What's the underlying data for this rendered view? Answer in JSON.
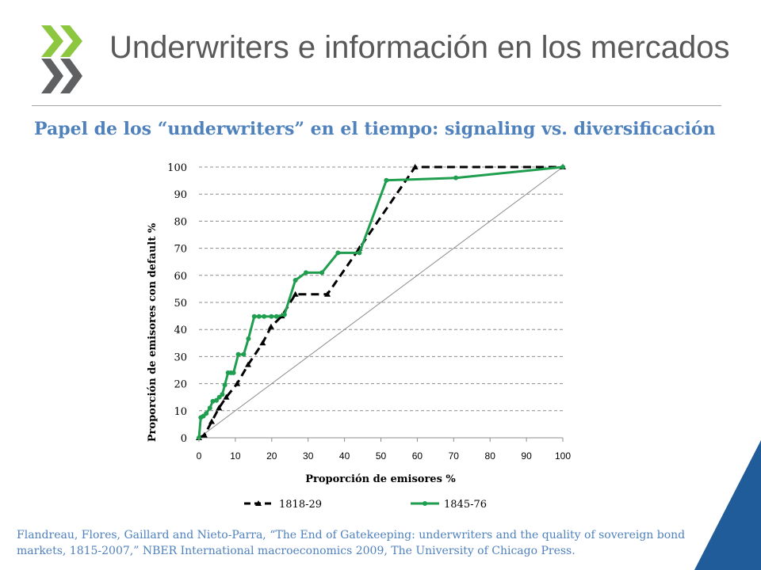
{
  "header": {
    "title": "Underwriters e información en los mercados",
    "subtitle": "Papel de los “underwriters” en el tiempo: signaling vs. diversificación"
  },
  "citation": "Flandreau, Flores, Gaillard and Nieto-Parra, “The End of Gatekeeping: underwriters and the quality of sovereign bond markets, 1815-2007,” NBER International macroeconomics 2009, The University of Chicago Press.",
  "colors": {
    "title": "#595959",
    "subtitle": "#4f81bd",
    "logo_green": "#8dc63f",
    "logo_gray": "#5f6062",
    "series_1818": "#000000",
    "series_1845": "#1e9e4e",
    "diagonal": "#8c8c8c",
    "corner": "#1f5c99"
  },
  "logo": {
    "icon": "oecd-logo-icon"
  },
  "chart_data": {
    "type": "line",
    "xlabel": "Proporción de emisores %",
    "ylabel": "Proporción de emisores con default %",
    "xlim": [
      0,
      100
    ],
    "ylim": [
      0,
      100
    ],
    "x_ticks": [
      "0",
      "10",
      "20",
      "30",
      "40",
      "50",
      "60",
      "70",
      "80",
      "90",
      "100"
    ],
    "y_ticks": [
      "0",
      "10",
      "20",
      "30",
      "40",
      "50",
      "60",
      "70",
      "80",
      "90",
      "100"
    ],
    "grid": "horizontal dashed",
    "legend_position": "bottom",
    "reference_line": {
      "x": [
        0,
        100
      ],
      "y": [
        0,
        100
      ]
    },
    "series": [
      {
        "name": "1818-29",
        "style": "dashed",
        "marker": "triangle",
        "x": [
          0,
          1.5,
          3.5,
          5.5,
          7.5,
          10.5,
          13.5,
          17.5,
          19.8,
          22.8,
          26.5,
          35.3,
          44.1,
          59.4,
          100
        ],
        "y": [
          0,
          1,
          6,
          11,
          15,
          20,
          27,
          35,
          41,
          45,
          53,
          53,
          70,
          100,
          100
        ]
      },
      {
        "name": "1845-76",
        "style": "solid",
        "marker": "circle",
        "x": [
          0,
          0.5,
          1.2,
          2,
          3,
          3.8,
          4.8,
          5.6,
          6.4,
          7.1,
          8,
          8.8,
          9.5,
          10.8,
          12.3,
          13.6,
          15.2,
          16.5,
          17.9,
          19.9,
          21.3,
          23.5,
          26.5,
          29.4,
          33.8,
          38.2,
          44.1,
          51.5,
          70.6,
          100
        ],
        "y": [
          0,
          7.5,
          8,
          9,
          11,
          13.5,
          13.8,
          15,
          16,
          19.5,
          24,
          24,
          24,
          30.8,
          30.8,
          36.6,
          44.8,
          44.8,
          44.8,
          44.8,
          44.8,
          45.5,
          58.2,
          61,
          61,
          68.3,
          68.3,
          95.1,
          96,
          100
        ]
      }
    ]
  }
}
